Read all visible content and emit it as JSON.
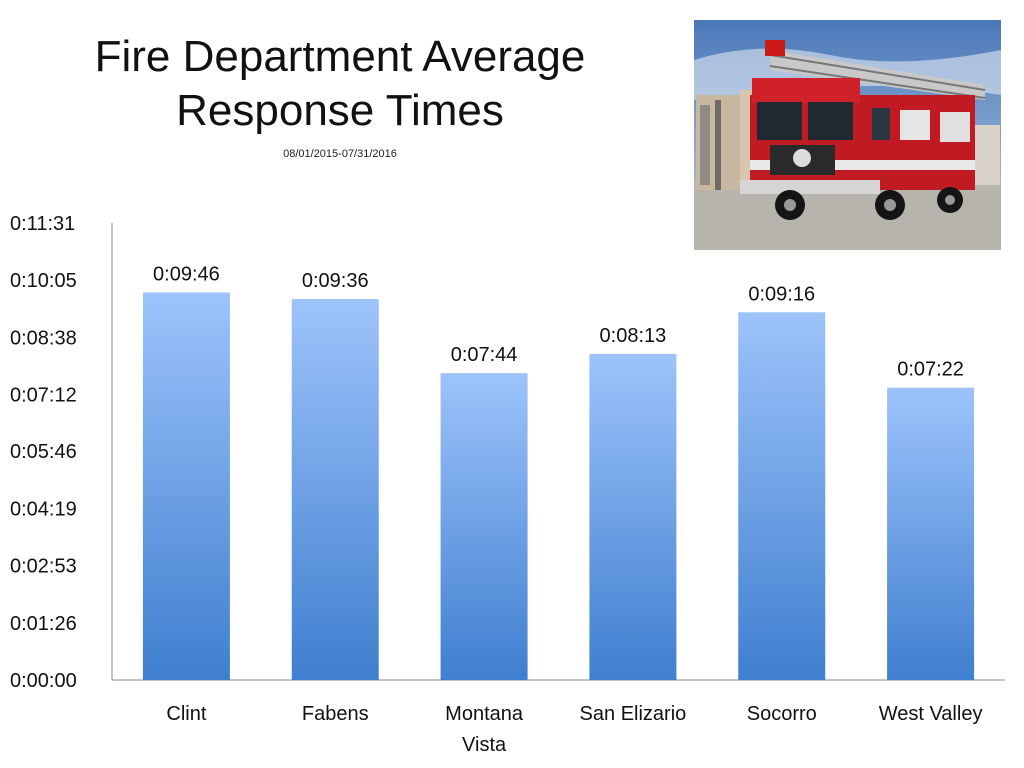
{
  "header": {
    "title_line1": "Fire Department Average",
    "title_line2": "Response Times",
    "subtitle": "08/01/2015-07/31/2016"
  },
  "photo": {
    "caption": ""
  },
  "colors": {
    "bar_top": "#9dc3fb",
    "bar_bottom": "#3f7fcf",
    "axis": "#888888"
  },
  "chart_data": {
    "type": "bar",
    "title": "Fire Department Average Response Times",
    "subtitle": "08/01/2015-07/31/2016",
    "categories": [
      "Clint",
      "Fabens",
      "Montana Vista",
      "San Elizario",
      "Socorro",
      "West Valley"
    ],
    "category_lines": [
      [
        "Clint"
      ],
      [
        "Fabens"
      ],
      [
        "Montana",
        "Vista"
      ],
      [
        "San Elizario"
      ],
      [
        "Socorro"
      ],
      [
        "West Valley"
      ]
    ],
    "values": [
      586,
      576,
      464,
      493,
      556,
      442
    ],
    "value_labels": [
      "0:09:46",
      "0:09:36",
      "0:07:44",
      "0:08:13",
      "0:09:16",
      "0:07:22"
    ],
    "y_ticks": [
      0,
      86,
      173,
      259,
      346,
      432,
      518,
      605,
      691
    ],
    "y_tick_labels": [
      "0:00:00",
      "0:01:26",
      "0:02:53",
      "0:04:19",
      "0:05:46",
      "0:07:12",
      "0:08:38",
      "0:10:05",
      "0:11:31"
    ],
    "ylim": [
      0,
      691
    ],
    "xlabel": "",
    "ylabel": "",
    "grid": false,
    "legend": "none"
  }
}
